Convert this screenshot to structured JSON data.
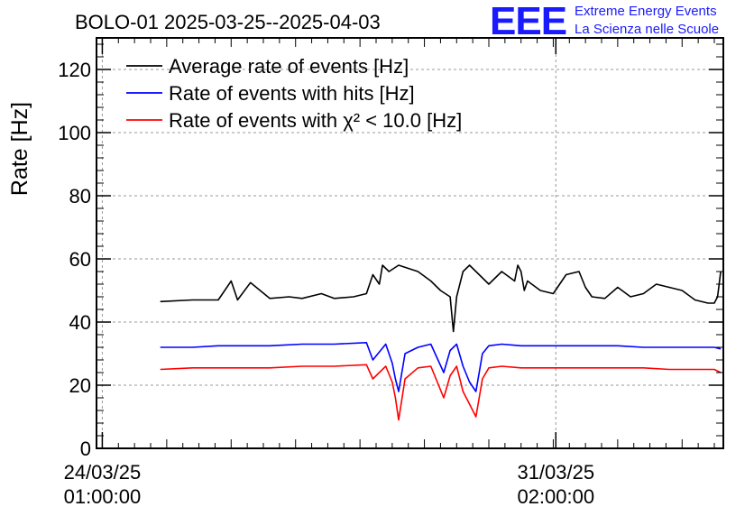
{
  "logo": {
    "mark": "EEE",
    "line1": "Extreme Energy Events",
    "line2": "La Scienza nelle Scuole"
  },
  "chart_data": {
    "type": "line",
    "title": "BOLO-01 2025-03-25--2025-04-03",
    "ylabel": "Rate [Hz]",
    "xlabel": "",
    "ylim": [
      0,
      130
    ],
    "yticks": [
      0,
      20,
      40,
      60,
      80,
      100,
      120
    ],
    "x_unit": "days",
    "xlim": [
      -0.09,
      9.64
    ],
    "x_start": "2025-03-24 01:00:00",
    "xticks": [
      {
        "x": 0.0,
        "line1": "24/03/25",
        "line2": "01:00:00"
      },
      {
        "x": 7.04,
        "line1": "31/03/25",
        "line2": "02:00:00"
      }
    ],
    "grid": true,
    "legend": "top-left",
    "series": [
      {
        "name": "Average rate of events [Hz]",
        "color": "#000000",
        "x": [
          0.9,
          1.4,
          1.8,
          2.0,
          2.1,
          2.3,
          2.6,
          2.9,
          3.1,
          3.4,
          3.6,
          3.9,
          4.1,
          4.2,
          4.3,
          4.35,
          4.45,
          4.6,
          4.9,
          5.1,
          5.25,
          5.4,
          5.45,
          5.5,
          5.6,
          5.7,
          6.0,
          6.2,
          6.4,
          6.45,
          6.5,
          6.55,
          6.6,
          6.8,
          7.0,
          7.2,
          7.4,
          7.5,
          7.6,
          7.8,
          8.0,
          8.2,
          8.4,
          8.6,
          8.8,
          9.0,
          9.2,
          9.4,
          9.5,
          9.55,
          9.6
        ],
        "y": [
          46.5,
          47.0,
          47.0,
          53.0,
          47.0,
          52.5,
          47.5,
          48.0,
          47.5,
          49.0,
          47.5,
          48.0,
          49.0,
          55.0,
          52.0,
          58.0,
          56.0,
          58.0,
          56.0,
          53.0,
          50.0,
          48.0,
          37.0,
          48.0,
          56.0,
          58.0,
          52.0,
          56.0,
          53.0,
          58.0,
          56.0,
          50.0,
          53.0,
          50.0,
          49.0,
          55.0,
          56.0,
          51.0,
          48.0,
          47.5,
          51.0,
          48.0,
          49.0,
          52.0,
          51.0,
          50.0,
          47.0,
          46.0,
          46.0,
          48.0,
          56.0
        ]
      },
      {
        "name": "Rate of events with hits [Hz]",
        "color": "#0000ff",
        "x": [
          0.9,
          1.4,
          1.8,
          2.1,
          2.6,
          3.1,
          3.6,
          4.1,
          4.2,
          4.4,
          4.5,
          4.55,
          4.6,
          4.7,
          4.9,
          5.1,
          5.3,
          5.4,
          5.5,
          5.6,
          5.7,
          5.8,
          5.9,
          6.0,
          6.2,
          6.5,
          6.8,
          7.2,
          7.6,
          8.0,
          8.4,
          8.8,
          9.2,
          9.5,
          9.6
        ],
        "y": [
          32.0,
          32.0,
          32.5,
          32.5,
          32.5,
          33.0,
          33.0,
          33.5,
          28.0,
          33.0,
          27.0,
          22.0,
          18.0,
          30.0,
          32.0,
          33.0,
          24.0,
          31.0,
          33.0,
          26.0,
          21.0,
          18.0,
          30.0,
          32.5,
          33.0,
          32.5,
          32.5,
          32.5,
          32.5,
          32.5,
          32.0,
          32.0,
          32.0,
          32.0,
          31.5
        ]
      },
      {
        "name": "Rate of events with χ² < 10.0 [Hz]",
        "color": "#ff0000",
        "x": [
          0.9,
          1.4,
          1.8,
          2.1,
          2.6,
          3.1,
          3.6,
          4.1,
          4.2,
          4.4,
          4.5,
          4.55,
          4.6,
          4.7,
          4.9,
          5.1,
          5.3,
          5.4,
          5.5,
          5.6,
          5.7,
          5.8,
          5.9,
          6.0,
          6.2,
          6.5,
          6.8,
          7.2,
          7.6,
          8.0,
          8.4,
          8.8,
          9.2,
          9.5,
          9.6
        ],
        "y": [
          25.0,
          25.5,
          25.5,
          25.5,
          25.5,
          26.0,
          26.0,
          26.5,
          22.0,
          26.0,
          21.0,
          16.0,
          9.0,
          22.0,
          25.5,
          26.0,
          16.0,
          23.0,
          26.0,
          18.0,
          14.0,
          10.0,
          22.0,
          25.5,
          26.0,
          25.5,
          25.5,
          25.5,
          25.5,
          25.5,
          25.5,
          25.0,
          25.0,
          25.0,
          24.0
        ]
      }
    ]
  }
}
